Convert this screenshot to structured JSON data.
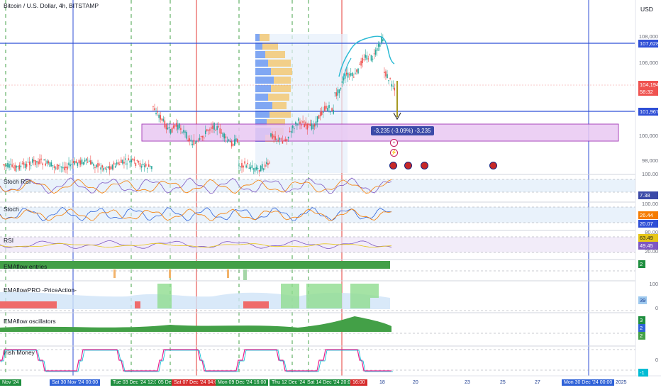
{
  "header": {
    "symbol_title": "Bitcoin / U.S. Dollar, 4h, BITSTAMP",
    "currency": "USD"
  },
  "price_scale": {
    "ticks": [
      "108,000",
      "106,000",
      "100,000",
      "98,000"
    ],
    "labels": {
      "level_high": "107,628",
      "current_price": "104,194",
      "countdown": "58:32",
      "level_low": "101,967"
    }
  },
  "measure_tool": {
    "text": "-3,235 (-3.09%) -3,235"
  },
  "panes": [
    {
      "title": "Stoch RSI",
      "scale_top": "100.00",
      "value": "7.38"
    },
    {
      "title": "Stoch",
      "scale_top": "100.00",
      "value_a": "26.44",
      "value_b": "20.07"
    },
    {
      "title": "RSI",
      "scale_top": "80.00",
      "value_a": "63.49",
      "value_b": "49.45",
      "scale_bottom": "20.00"
    },
    {
      "title": "EMAflow entries",
      "value": "2"
    },
    {
      "title": "EMAflowPRO -PriceAction-",
      "scale_top": "100",
      "value": "39",
      "scale_bottom": "0"
    },
    {
      "title": "EMAflow oscillators",
      "value_a": "3",
      "value_b": "2",
      "value_c": "2"
    },
    {
      "title": "Irish Money",
      "scale_mid": "0",
      "value": "-1"
    }
  ],
  "time_axis": {
    "labels": [
      {
        "text": "Nov '24",
        "style": "green"
      },
      {
        "text": "Sat 30 Nov '24  00:00",
        "style": "box"
      },
      {
        "text": "Tue 03 Dec '24  12:00",
        "style": "green"
      },
      {
        "text": "05 Dec",
        "style": "green"
      },
      {
        "text": "Sat 07 Dec '24  04:00",
        "style": "red"
      },
      {
        "text": "Mon 09 Dec '24  16:00",
        "style": "green"
      },
      {
        "text": "Thu 12 Dec '24",
        "style": "green"
      },
      {
        "text": "Sat 14 Dec '24  20:00",
        "style": "green"
      },
      {
        "text": "16:00",
        "style": "red"
      },
      {
        "text": "18",
        "style": "plain"
      },
      {
        "text": "20",
        "style": "plain"
      },
      {
        "text": "23",
        "style": "plain"
      },
      {
        "text": "25",
        "style": "plain"
      },
      {
        "text": "27",
        "style": "plain"
      },
      {
        "text": "Mon 30 Dec '24  00:00",
        "style": "box"
      },
      {
        "text": "2025",
        "style": "plain"
      }
    ]
  },
  "colors": {
    "up": "#26a69a",
    "down": "#ef5350",
    "blue_line": "#2f4fd6",
    "red_line": "#e53935",
    "green_dash": "#43a047",
    "zone_fill": "#e9c8f3",
    "zone_border": "#9c27b0"
  },
  "icons": {
    "events": "us-flag-icon",
    "flash": "lightning-icon"
  }
}
